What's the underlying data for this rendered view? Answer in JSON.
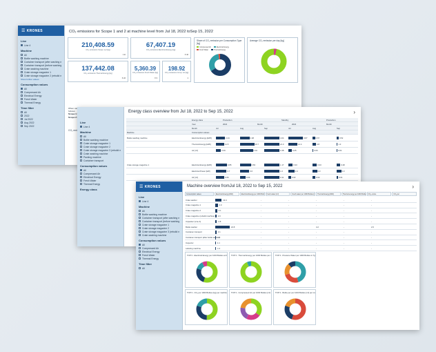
{
  "brand": "KRONES",
  "win1": {
    "title": "CO₂ emissions for Scope 1 and 2 at machine level from Jul 18, 2022 toSep 15, 2022",
    "sidebar": {
      "line_label": "Line",
      "line_item": "Line 4",
      "machine_label": "Machine",
      "machines": [
        "All",
        "Bottle washing machine",
        "Container transport (after washing machine)",
        "Container transport (before washing machine)",
        "Crate washing machine",
        "Crate storage magazine 1",
        "Crate storage magazine 2 (rebuild machine)"
      ],
      "show_more": "Show further values",
      "consumption_label": "Consumption values",
      "consumption": [
        "All",
        "Compressed Air",
        "Electrical Energy",
        "Fresh Water",
        "Thermal Energy"
      ],
      "time_label": "Time filter",
      "time": [
        "All",
        "2022",
        "Jul 2022",
        "Aug 2022",
        "Sep 2022"
      ]
    },
    "kpis": [
      {
        "value": "210,408.59",
        "label": "CO₂ emissions Scope 1+2 [kg]",
        "tag": "1 kt"
      },
      {
        "value": "67,407.19",
        "label": "CO₂ emissions Electrical Energy [kg]",
        "tag": "Σ 42"
      },
      {
        "value": "137,442.08",
        "label": "CO₂ emissions Thermal Energy [kg]",
        "tag": "Σ 22"
      },
      {
        "value": "5,360.39",
        "label": "CO₂ emissions Fresh Water [kg]",
        "tag": "Σ 3"
      },
      {
        "value": "198.92",
        "label": "CO₂ emissions Comp. Air [kg]",
        "tag": "1"
      }
    ],
    "share_panel_title": "Share of CO₂ emission per Consumption Type [kg]",
    "share_legend": [
      "Compressed Air",
      "Electrical Energy",
      "Fresh Water",
      "Thermal Energy"
    ],
    "avg_panel_title": "Average CO₂ emission per day [kg]",
    "paragraph": [
      "When calculating CO₂ emissions per consumption type, only those emissions are taken into account that result from the operation of the plant and from purchased energies. The CO₂ emissions used for the calculation can be identified as follows:",
      "Scope 1: Emissions are direct greenhouse (GHG) emissions that occur from sources that are controlled or owned by an organization (e.g., emissions associated with fuel combustion in boilers, furnaces, vehicles).",
      "Scope 2: Indirect emissions from purchased electricity and steam, purchased district heating/cooling."
    ],
    "sub_title": "CO₂ emissions per machine"
  },
  "win2": {
    "title": "Energy class overview from Jul 18, 2022 to Sep 15, 2022",
    "sidebar": {
      "line_label": "Line",
      "line_item": "Line 4",
      "machine_label": "Machine",
      "machines": [
        "All",
        "Bottle washing machine",
        "Crate storage magazine 1",
        "Crate storage magazine 2",
        "Crate storage magazine 3 (rebuild machine)",
        "Crate washing machine",
        "Packing machine",
        "Container transport"
      ],
      "consumption_label": "Consumption values",
      "consumption": [
        "All",
        "Compressed Air",
        "Electrical Energy",
        "Fresh Water",
        "Thermal Energy"
      ],
      "energy_label": "Energy class"
    },
    "header_rows": [
      "Energy class",
      "Year",
      "Month"
    ],
    "col_groups": [
      "Production",
      "Standby",
      "Production"
    ],
    "years": [
      "2022",
      "Month",
      "2022",
      "Month"
    ],
    "months": [
      "Jul",
      "Aug",
      "Sep",
      "Jul",
      "Aug",
      "Sep"
    ],
    "col_headers": [
      "Machine",
      "Consumption values"
    ],
    "rows": [
      {
        "machine": "Bottle washing machine",
        "value": "Electrical Energy [kWh]",
        "cells": [
          "2.44",
          "2.48",
          "4.04",
          "3.87",
          "0.67",
          "0.52"
        ]
      },
      {
        "machine": "",
        "value": "Thermal Energy [kWh]",
        "cells": [
          "11.5",
          "19.7",
          "21.0",
          "12.4",
          "4.8",
          "1.3"
        ]
      },
      {
        "machine": "",
        "value": "Air [m³]",
        "cells": [
          "0.36",
          "0.91",
          "1.08",
          "0.25",
          "0.06",
          "0.01"
        ]
      },
      {
        "machine": "Crate storage magazine 1",
        "value": "Electrical Energy [kWh]",
        "cells": [
          "0.85",
          "0.83",
          "1.17",
          "0.33",
          "0.33",
          "0.28"
        ]
      },
      {
        "machine": "",
        "value": "Electrical Power [kW]",
        "cells": [
          "0.7",
          "0.6",
          "1.0",
          "0.4",
          "0.3",
          "0.3"
        ]
      },
      {
        "machine": "",
        "value": "Air [m³]",
        "cells": [
          "0.06",
          "0.04",
          "0.11",
          "0.02",
          "0.02",
          "0.01"
        ]
      }
    ]
  },
  "win3": {
    "title": "Machine overview fromJul 18, 2022 to Sep 15, 2022",
    "sidebar": {
      "line_label": "Line",
      "line_item": "Line 4",
      "machine_label": "Machine",
      "machines": [
        "All",
        "Bottle washing machine",
        "Container transport (after washing machine)",
        "Container transport (before washing machine)",
        "Crate storage magazine 1",
        "Crate storage magazine 2",
        "Crate storage magazine 3 (rebuild machine)",
        "Crate washing machine"
      ],
      "consumption_label": "Consumption values",
      "consumption": [
        "All",
        "Compressed Air",
        "Electrical Energy",
        "Fresh Water",
        "Thermal Energy"
      ],
      "time_label": "Time filter",
      "time": [
        "All"
      ]
    },
    "tabs": [
      "Consumption values",
      "Electrical Energy [kWh]",
      "Electrical Energy per 1000 Bottles [kWh]",
      "Fresh water [m³]",
      "Fresh water per 1000 Bottles [m³]",
      "Thermal Energy [kWh]",
      "Thermal energy per 1000 Bottles",
      "CO₂ emiss.",
      "CO₂ per"
    ],
    "rows": [
      {
        "name": "Crate washer",
        "bar": 0.42,
        "v1": "10.4",
        "rest": [
          "-",
          "-",
          "-",
          "-",
          "-"
        ]
      },
      {
        "name": "Crate magazine 1",
        "bar": 0.16,
        "v1": "4.0",
        "rest": [
          "-",
          "-",
          "-",
          "-",
          "-"
        ]
      },
      {
        "name": "Crate magazine 2",
        "bar": 0.12,
        "v1": "3.1",
        "rest": [
          "-",
          "-",
          "-",
          "-",
          "-"
        ]
      },
      {
        "name": "Crate magazine (rebuild machine)",
        "bar": 0.08,
        "v1": "2.0",
        "rest": [
          "-",
          "-",
          "-",
          "-",
          "-"
        ]
      },
      {
        "name": "Unpacker (Line 4)",
        "bar": 0.11,
        "v1": "2.8",
        "rest": [
          "-",
          "-",
          "-",
          "-",
          "-"
        ]
      },
      {
        "name": "Bottle washer",
        "bar": 0.95,
        "v1": "24.8",
        "rest": [
          "-",
          "-",
          "4.2",
          "-",
          "2.6"
        ]
      },
      {
        "name": "Container transport",
        "bar": 0.08,
        "v1": "2.1",
        "rest": [
          "-",
          "-",
          "-",
          "-",
          "-"
        ]
      },
      {
        "name": "Container transport (after bottle washer)",
        "bar": 0.06,
        "v1": "1.5",
        "rest": [
          "-",
          "-",
          "-",
          "-",
          "-"
        ]
      },
      {
        "name": "Inspector",
        "bar": 0.04,
        "v1": "1.1",
        "rest": [
          "-",
          "-",
          "-",
          "-",
          "-"
        ]
      },
      {
        "name": "Labeling machine",
        "bar": 0.05,
        "v1": "1.3",
        "rest": [
          "-",
          "-",
          "-",
          "-",
          "-"
        ]
      }
    ],
    "charts": [
      {
        "title": "TOP 3 - Electrical Energy per 1000 Bottles at the machine"
      },
      {
        "title": "TOP 3 - Thermal Energy per 1000 Bottles per machine"
      },
      {
        "title": "TOP 3 - Pressure Water per 1000 Bottles in Type machine"
      },
      {
        "title": "TOP 3 - CO₂ per 1000 Bottles (kg) per machine"
      },
      {
        "title": "TOP 3 - Compressed Air per 1000 Bottles [m³] per machine"
      },
      {
        "title": "TOP 3 - Bottle per per 1000 Bottles [m³] per machine"
      },
      {
        "title": "TOP 3 - Air per 1000 Bottles [dm³] per machine"
      }
    ]
  },
  "colors": {
    "brand": "#1f5fa3",
    "navy": "#1b3d66",
    "green": "#8ed321",
    "teal": "#2f9fa8",
    "orange": "#e8912e",
    "pink": "#d53c8a",
    "red": "#d94b3b",
    "purple": "#8e5bb1"
  }
}
